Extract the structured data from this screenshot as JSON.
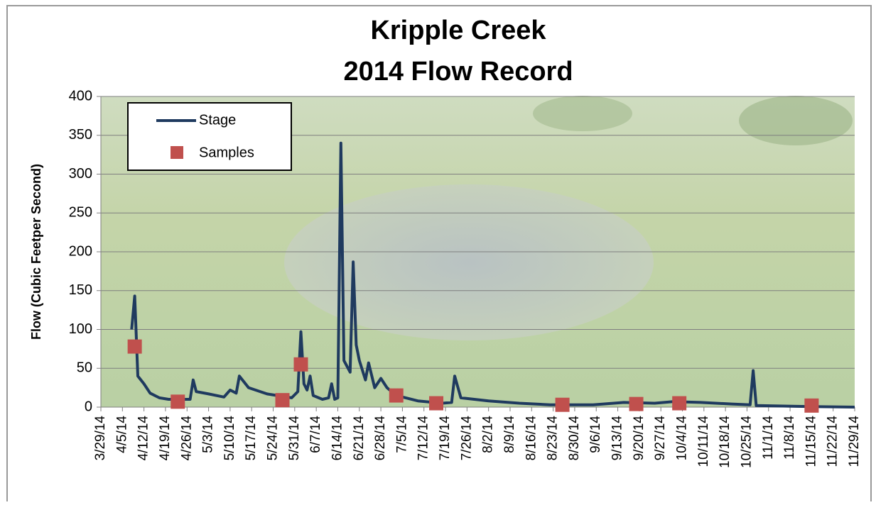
{
  "chart_data": {
    "type": "line",
    "title": "Kripple Creek",
    "subtitle": "2014 Flow Record",
    "y_label": "Flow (Cubic Feetper Second)",
    "xlim": [
      "3/29/14",
      "11/29/14"
    ],
    "xticks": [
      "3/29/14",
      "4/5/14",
      "4/12/14",
      "4/19/14",
      "4/26/14",
      "5/3/14",
      "5/10/14",
      "5/17/14",
      "5/24/14",
      "5/31/14",
      "6/7/14",
      "6/14/14",
      "6/21/14",
      "6/28/14",
      "7/5/14",
      "7/12/14",
      "7/19/14",
      "7/26/14",
      "8/2/14",
      "8/9/14",
      "8/16/14",
      "8/23/14",
      "8/30/14",
      "9/6/14",
      "9/13/14",
      "9/20/14",
      "9/27/14",
      "10/4/14",
      "10/11/14",
      "10/18/14",
      "10/25/14",
      "11/1/14",
      "11/8/14",
      "11/15/14",
      "11/22/14",
      "11/29/14"
    ],
    "ylim": [
      0,
      400
    ],
    "yticks": [
      0,
      50,
      100,
      150,
      200,
      250,
      300,
      350,
      400
    ],
    "grid": true,
    "legend": "upper left",
    "series": [
      {
        "name": "Stage",
        "color": "#1f3a5f",
        "x": [
          "4/8/14",
          "4/9/14",
          "4/10/14",
          "4/12/14",
          "4/14/14",
          "4/17/14",
          "4/20/14",
          "4/24/14",
          "4/27/14",
          "4/28/14",
          "4/29/14",
          "5/3/14",
          "5/8/14",
          "5/10/14",
          "5/12/14",
          "5/13/14",
          "5/16/14",
          "5/22/14",
          "5/30/14",
          "6/1/14",
          "6/2/14",
          "6/3/14",
          "6/4/14",
          "6/5/14",
          "6/6/14",
          "6/9/14",
          "6/11/14",
          "6/12/14",
          "6/13/14",
          "6/14/14",
          "6/15/14",
          "6/16/14",
          "6/18/14",
          "6/19/14",
          "6/20/14",
          "6/21/14",
          "6/23/14",
          "6/24/14",
          "6/26/14",
          "6/28/14",
          "6/30/14",
          "7/3/14",
          "7/10/14",
          "7/18/14",
          "7/21/14",
          "7/22/14",
          "7/24/14",
          "8/2/14",
          "8/12/14",
          "8/22/14",
          "9/5/14",
          "9/15/14",
          "9/25/14",
          "10/1/14",
          "10/10/14",
          "10/20/14",
          "10/26/14",
          "10/27/14",
          "10/28/14",
          "11/10/14",
          "11/29/14"
        ],
        "values": [
          100,
          143,
          40,
          30,
          18,
          12,
          10,
          10,
          10,
          35,
          20,
          17,
          13,
          22,
          18,
          40,
          25,
          17,
          12,
          20,
          97,
          30,
          22,
          40,
          15,
          10,
          12,
          30,
          10,
          12,
          340,
          60,
          45,
          187,
          80,
          60,
          35,
          57,
          25,
          37,
          25,
          15,
          8,
          5,
          6,
          40,
          12,
          8,
          5,
          3,
          3,
          6,
          5,
          7,
          6,
          4,
          3,
          47,
          2,
          1,
          0
        ]
      },
      {
        "name": "Samples",
        "color": "#c0504d",
        "x": [
          "4/9/14",
          "4/23/14",
          "5/27/14",
          "6/2/14",
          "7/3/14",
          "7/16/14",
          "8/26/14",
          "9/19/14",
          "10/3/14",
          "11/15/14"
        ],
        "values": [
          78,
          7,
          9,
          55,
          15,
          5,
          3,
          4,
          5,
          2
        ]
      }
    ]
  }
}
